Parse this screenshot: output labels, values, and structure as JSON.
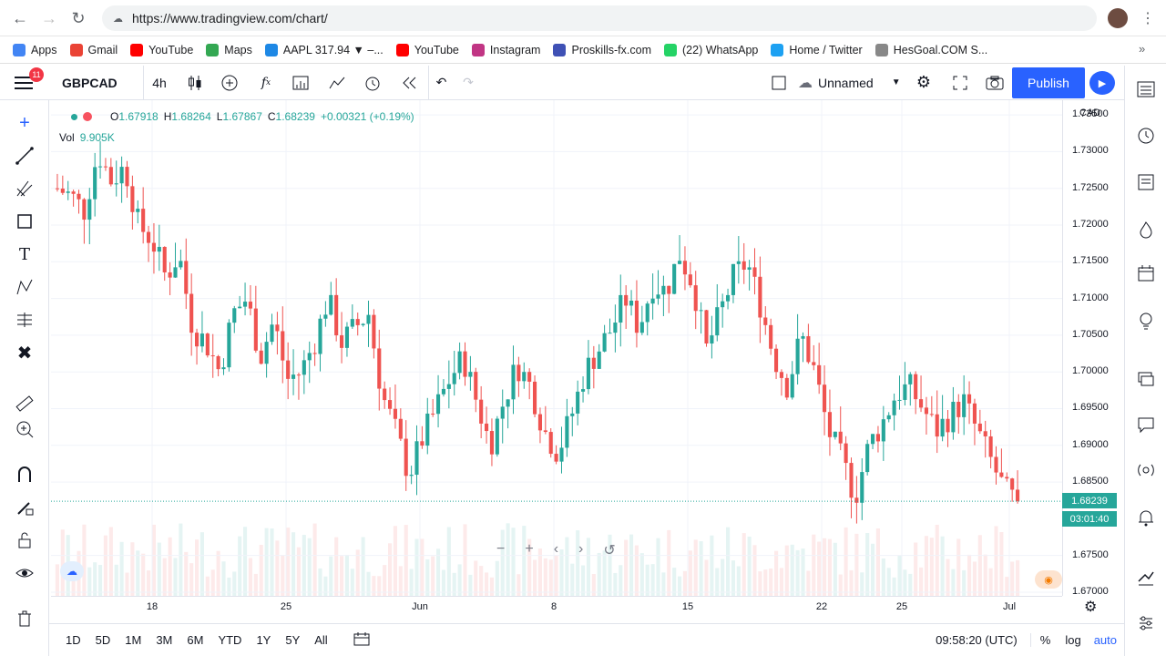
{
  "browser": {
    "url": "https://www.tradingview.com/chart/",
    "bookmarks": [
      {
        "label": "Apps",
        "color": "#4285f4"
      },
      {
        "label": "Gmail",
        "color": "#ea4335"
      },
      {
        "label": "YouTube",
        "color": "#ff0000"
      },
      {
        "label": "Maps",
        "color": "#34a853"
      },
      {
        "label": "AAPL 317.94 ▼ –...",
        "color": "#1e88e5"
      },
      {
        "label": "YouTube",
        "color": "#ff0000"
      },
      {
        "label": "Instagram",
        "color": "#c13584"
      },
      {
        "label": "Proskills-fx.com",
        "color": "#3f51b5"
      },
      {
        "label": "(22) WhatsApp",
        "color": "#25d366"
      },
      {
        "label": "Home / Twitter",
        "color": "#1da1f2"
      },
      {
        "label": "HesGoal.COM S...",
        "color": "#888888"
      }
    ]
  },
  "toolbar": {
    "symbol": "GBPCAD",
    "interval": "4h",
    "layout_name": "Unnamed",
    "publish_label": "Publish"
  },
  "legend": {
    "open_label": "O",
    "open": "1.67918",
    "high_label": "H",
    "high": "1.68264",
    "low_label": "L",
    "low": "1.67867",
    "close_label": "C",
    "close": "1.68239",
    "change": "+0.00321 (+0.19%)",
    "vol_label": "Vol",
    "vol": "9.905K"
  },
  "left_badge": "11",
  "price_axis": {
    "currency": "CAD",
    "last_price": "1.68239",
    "countdown": "03:01:40"
  },
  "bottom": {
    "ranges": [
      "1D",
      "5D",
      "1M",
      "3M",
      "6M",
      "YTD",
      "1Y",
      "5Y",
      "All"
    ],
    "time": "09:58:20 (UTC)",
    "percent": "%",
    "log": "log",
    "auto": "auto"
  },
  "colors": {
    "up": "#26a69a",
    "down": "#ef5350",
    "accent": "#2962ff"
  },
  "chart_data": {
    "type": "candlestick",
    "symbol": "GBPCAD",
    "interval": "4h",
    "y_ticks": [
      "1.73500",
      "1.73000",
      "1.72500",
      "1.72000",
      "1.71500",
      "1.71000",
      "1.70500",
      "1.70000",
      "1.69500",
      "1.69000",
      "1.68500",
      "1.67500",
      "1.67000"
    ],
    "ylim": [
      1.67,
      1.737
    ],
    "x_ticks": [
      "18",
      "25",
      "Jun",
      "8",
      "15",
      "22",
      "25",
      "Jul"
    ],
    "path_points": [
      [
        1.725,
        1.724
      ],
      [
        1.722,
        1.73
      ],
      [
        1.726,
        1.728
      ],
      [
        1.72,
        1.718
      ],
      [
        1.713,
        1.716
      ],
      [
        1.706,
        1.704
      ],
      [
        1.7,
        1.708
      ],
      [
        1.71,
        1.702
      ],
      [
        1.707,
        1.699
      ],
      [
        1.7,
        1.704
      ],
      [
        1.71,
        1.704
      ],
      [
        1.706,
        1.708
      ],
      [
        1.697,
        1.692
      ],
      [
        1.686,
        1.691
      ],
      [
        1.695,
        1.699
      ],
      [
        1.702,
        1.696
      ],
      [
        1.69,
        1.696
      ],
      [
        1.701,
        1.698
      ],
      [
        1.692,
        1.689
      ],
      [
        1.694,
        1.7
      ],
      [
        1.703,
        1.706
      ],
      [
        1.71,
        1.706
      ],
      [
        1.712,
        1.711
      ],
      [
        1.716,
        1.712
      ],
      [
        1.703,
        1.708
      ],
      [
        1.713,
        1.715
      ],
      [
        1.709,
        1.702
      ],
      [
        1.698,
        1.705
      ],
      [
        1.7,
        1.692
      ],
      [
        1.688,
        1.683
      ],
      [
        1.69,
        1.693
      ],
      [
        1.697,
        1.698
      ],
      [
        1.695,
        1.692
      ],
      [
        1.694,
        1.696
      ],
      [
        1.692,
        1.688
      ],
      [
        1.684,
        1.682
      ]
    ],
    "last_price": 1.68239
  }
}
